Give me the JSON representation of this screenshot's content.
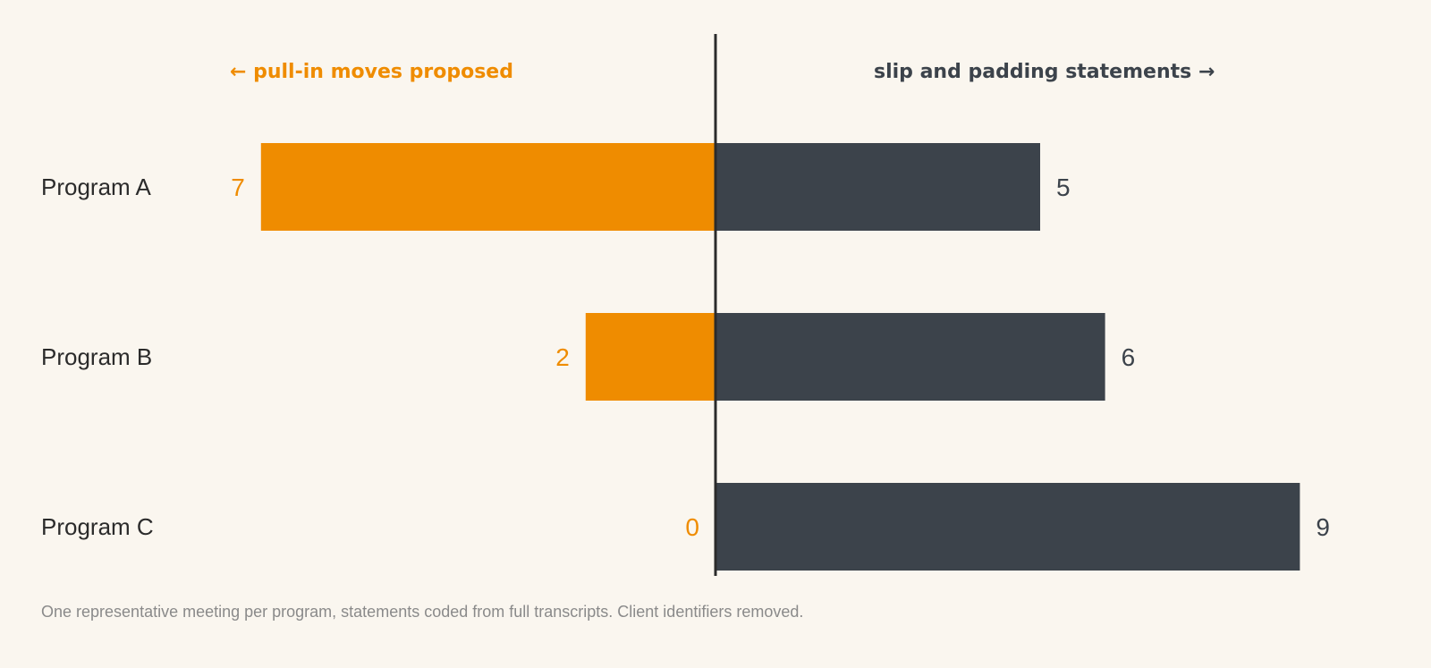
{
  "colors": {
    "background": "#faf6ef",
    "left_series": "#ef8c00",
    "right_series": "#3c434b",
    "axis": "#2b2b2b",
    "category_text": "#2b2b2b",
    "footnote_text": "#8a8a8a"
  },
  "chart_data": {
    "type": "bar",
    "orientation": "horizontal-diverging",
    "categories": [
      "Program A",
      "Program B",
      "Program C"
    ],
    "series": [
      {
        "name": "← pull-in moves proposed",
        "side": "left",
        "values": [
          7,
          2,
          0
        ]
      },
      {
        "name": "slip and padding statements →",
        "side": "right",
        "values": [
          5,
          6,
          9
        ]
      }
    ],
    "xlim": [
      -11,
      11
    ],
    "grid": false,
    "data_labels": true
  },
  "footnote": "One representative meeting per program, statements coded from full transcripts. Client identifiers removed."
}
